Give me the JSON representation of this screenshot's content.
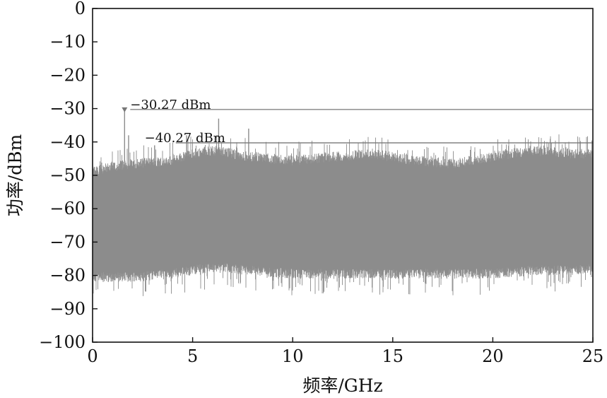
{
  "chart_data": {
    "type": "line",
    "xlabel": "频率/GHz",
    "ylabel": "功率/dBm",
    "xlim": [
      0,
      25
    ],
    "ylim": [
      -100,
      0
    ],
    "x_ticks": [
      "0",
      "5",
      "10",
      "15",
      "20",
      "25"
    ],
    "y_ticks": [
      "0",
      "−10",
      "−20",
      "−30",
      "−40",
      "−50",
      "−60",
      "−70",
      "−80",
      "−90",
      "−100"
    ],
    "grid": false,
    "series_color": "#8c8c8c",
    "noise_envelope": {
      "x": [
        0,
        2,
        4,
        5,
        6,
        8,
        10,
        12,
        14,
        16,
        18,
        20,
        22,
        24,
        25
      ],
      "upper": [
        -49,
        -47,
        -46,
        -44,
        -43,
        -45,
        -46,
        -45,
        -44,
        -46,
        -47,
        -45,
        -43,
        -44,
        -44
      ],
      "lower": [
        -80,
        -80,
        -79,
        -78,
        -77,
        -78,
        -79,
        -79,
        -79,
        -79,
        -79,
        -79,
        -78,
        -78,
        -77
      ]
    },
    "spurs": [
      {
        "x": 1.6,
        "y": -30.27
      },
      {
        "x": 1.8,
        "y": -38
      },
      {
        "x": 3.1,
        "y": -41
      },
      {
        "x": 4.7,
        "y": -38
      },
      {
        "x": 6.3,
        "y": -33
      },
      {
        "x": 7.8,
        "y": -36
      }
    ],
    "reference_lines": [
      {
        "y": -30.27,
        "label": "−30.27 dBm"
      },
      {
        "y": -40.27,
        "label": "−40.27 dBm"
      }
    ]
  }
}
